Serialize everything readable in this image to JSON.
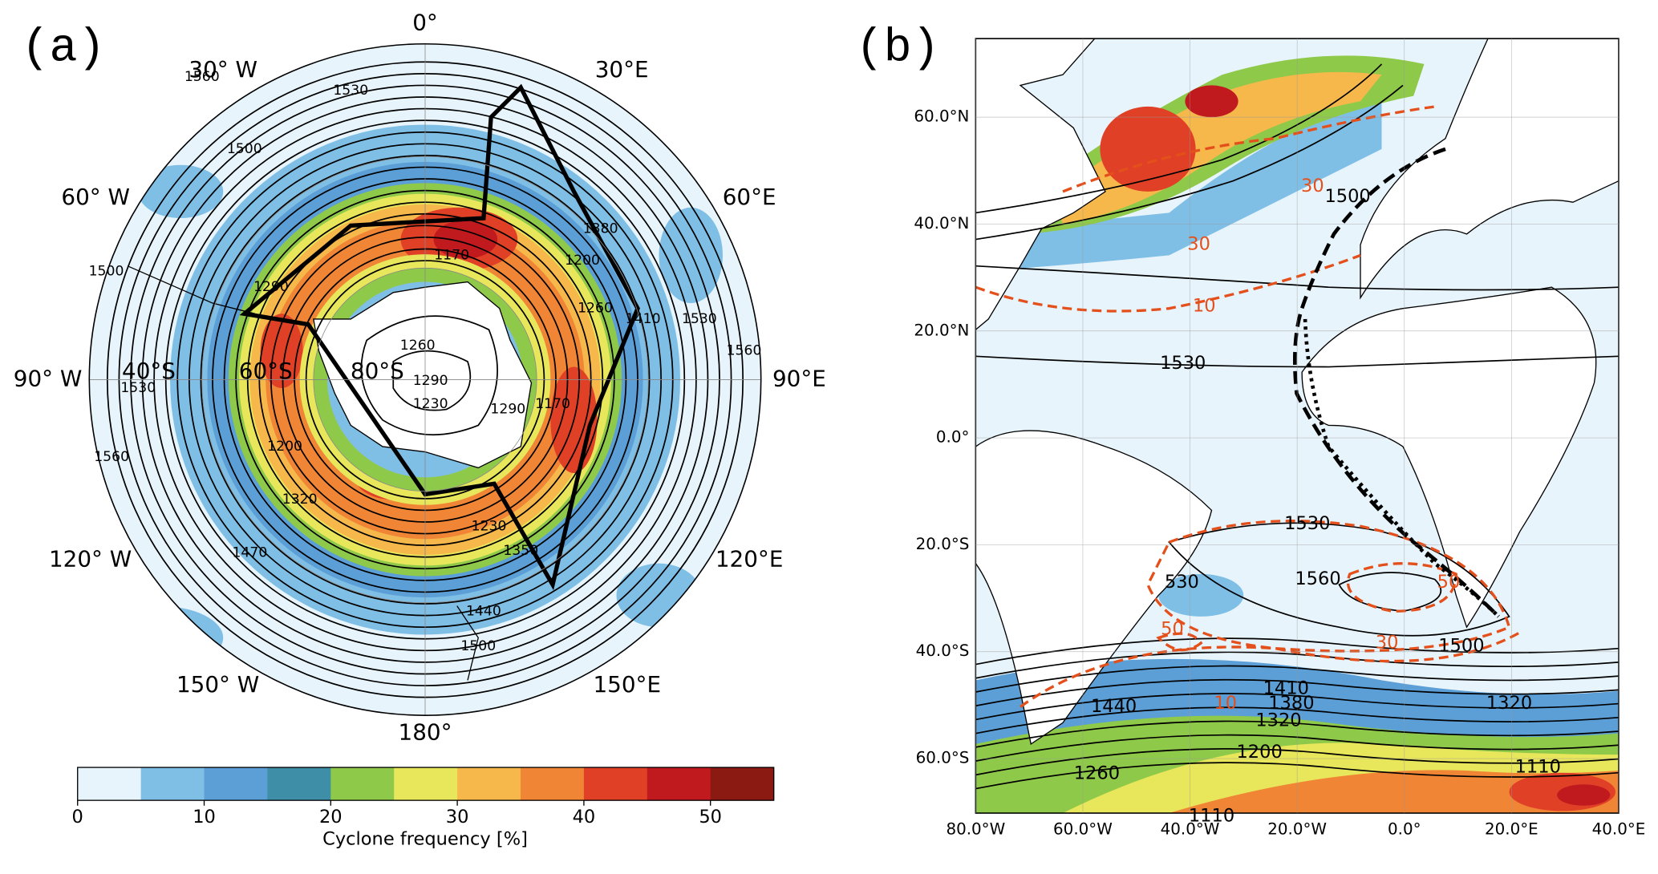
{
  "panel_a": {
    "label": "(a)",
    "longitude_labels": [
      "0°",
      "30° W",
      "30°E",
      "60° W",
      "60°E",
      "90° W",
      "90°E",
      "120° W",
      "120°E",
      "150° W",
      "150°E",
      "180°"
    ],
    "latitude_labels": [
      "40°S",
      "60°S",
      "80°S"
    ],
    "contour_labels": [
      "1560",
      "1530",
      "1500",
      "1170",
      "1200",
      "1380",
      "1260",
      "1410",
      "1530",
      "1560",
      "1260",
      "1290",
      "1230",
      "1290",
      "1170",
      "1200",
      "1320",
      "1230",
      "1350",
      "1470",
      "1440",
      "1500",
      "1560",
      "1530",
      "1500",
      "1290"
    ]
  },
  "colorbar": {
    "label": "Cyclone frequency [%]",
    "range": [
      0,
      55
    ],
    "ticks": [
      0,
      10,
      20,
      30,
      40,
      50
    ],
    "colors": [
      "#e8f4fb",
      "#7fbfe6",
      "#5b9fd6",
      "#3f8ea8",
      "#8fc94a",
      "#e8e65a",
      "#f6b84b",
      "#f08535",
      "#e04026",
      "#c01a1f",
      "#8b1a12"
    ]
  },
  "panel_b": {
    "label": "(b)",
    "xlim": [
      -80,
      40
    ],
    "ylim": [
      -70.2,
      74.7
    ],
    "xticks": [
      {
        "value": -80,
        "label": "80.0°W"
      },
      {
        "value": -60,
        "label": "60.0°W"
      },
      {
        "value": -40,
        "label": "40.0°W"
      },
      {
        "value": -20,
        "label": "20.0°W"
      },
      {
        "value": 0,
        "label": "0.0°"
      },
      {
        "value": 20,
        "label": "20.0°E"
      },
      {
        "value": 40,
        "label": "40.0°E"
      }
    ],
    "yticks": [
      {
        "value": 60,
        "label": "60.0°N"
      },
      {
        "value": 40,
        "label": "40.0°N"
      },
      {
        "value": 20,
        "label": "20.0°N"
      },
      {
        "value": 0,
        "label": "0.0°"
      },
      {
        "value": -20,
        "label": "20.0°S"
      },
      {
        "value": -40,
        "label": "40.0°S"
      },
      {
        "value": -60,
        "label": "60.0°S"
      }
    ],
    "contour_labels": [
      "1500",
      "30",
      "30",
      "10",
      "1530",
      "1530",
      "530",
      "1560",
      "50",
      "50",
      "30",
      "1500",
      "1440",
      "1410",
      "1380",
      "1320",
      "1320",
      "10",
      "1200",
      "1110",
      "1260",
      "1110"
    ]
  }
}
